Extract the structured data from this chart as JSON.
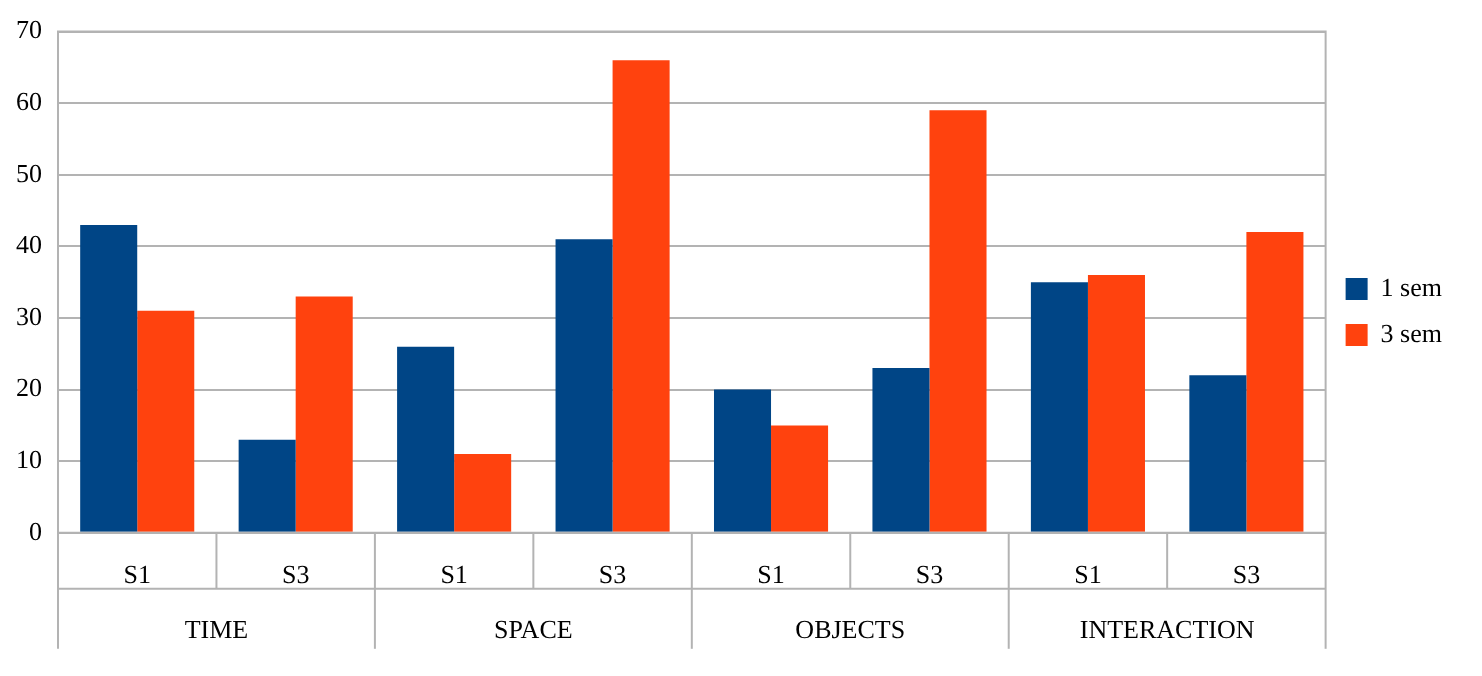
{
  "chart_data": {
    "type": "bar",
    "categories": [
      "S1",
      "S3",
      "S1",
      "S3",
      "S1",
      "S3",
      "S1",
      "S3"
    ],
    "annotations": [
      "TIME",
      "SPACE",
      "OBJECTS",
      "INTERACTION"
    ],
    "series": [
      {
        "name": "1 sem",
        "color": "#004586",
        "values": [
          43,
          13,
          26,
          41,
          20,
          23,
          35,
          22
        ]
      },
      {
        "name": "3 sem",
        "color": "#ff420e",
        "values": [
          31,
          33,
          11,
          66,
          15,
          59,
          36,
          42
        ]
      }
    ],
    "ylim": [
      0,
      70
    ],
    "yticks": [
      0,
      10,
      20,
      30,
      40,
      50,
      60,
      70
    ],
    "grid": "y",
    "legend": "right"
  }
}
